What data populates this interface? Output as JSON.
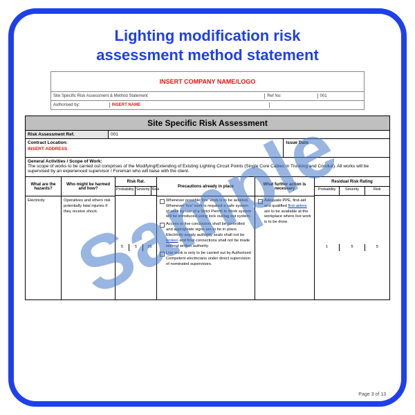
{
  "title_line1": "Lighting modification risk",
  "title_line2": "assessment method statement",
  "watermark": "Sample",
  "footer": "Page 3 of 13",
  "colors": {
    "frame_border": "#1e40eb",
    "title_color": "#1e40eb",
    "watermark_color": "rgba(70,120,200,0.55)",
    "insert_red": "#e11",
    "header_gray": "#bfbfbf",
    "link_blue": "#0033aa"
  },
  "header": {
    "company_logo": "INSERT COMPANY NAME/LOGO",
    "subtitle_label": "Site Specific Risk Assessment & Method Statement",
    "ref_label": "Ref No:",
    "ref_value": "001",
    "auth_label": "Authorised by:",
    "auth_value": "INSERT NAME"
  },
  "assessment": {
    "banner": "Site Specific Risk Assessment",
    "ref_label": "Risk Assessment Ref.",
    "ref_value": "001",
    "contract_label": "Contract Location:",
    "contract_value": "INSERT ADDRESS",
    "issue_label": "Issue Date",
    "scope_label": "General Activities / Scope of Work:",
    "scope_text": "The scope of works to be carried out comprises of the Modifying/Extending of Existing Lighting Circuit Points (Single Core Cables in Trunking and Conduit). All works will be supervised by an experienced supervisor / Foreman who will liaise with the client."
  },
  "table": {
    "headers": {
      "hazards": "What are the hazards?",
      "who": "Who might be harmed and how?",
      "risk_rat": "Risk Rat.",
      "risk_sub": {
        "prob": "Probability",
        "sev": "Severity",
        "risk": "Risk"
      },
      "precautions": "Precautions already in place",
      "further": "What further action is necessary",
      "residual": "Residual Risk Rating",
      "residual_sub": {
        "prob": "Probability",
        "sev": "Severity",
        "risk": "Risk"
      }
    },
    "row1": {
      "hazard": "Electricity",
      "who": "Operatives and others risk potentially fatal injuries if they receive shock.",
      "risk": {
        "prob": "5",
        "sev": "5",
        "r": "25"
      },
      "precautions": [
        "Whenever possible 'live' work is to be avoided. Whenever 'live' work is required a safe system of work by use of a Strict Permit to Work system will be introduced using lock out/tag out system.",
        "Access to live conductors shall be controlled and appropriate signs are to be in place. Electricity supply authority seals shall not be broken and final connections shall not be made without written authority.",
        "Live work is only to be carried out by Authorised Competent electricians under direct supervision of nominated supervisors."
      ],
      "precaution_links": [
        "broken"
      ],
      "further": "Adequate PPE, first-aid and qualified first-aiders are to be available at the workplace where live work is to be done.",
      "further_links": [
        "first-aiders"
      ],
      "residual": {
        "prob": "1",
        "sev": "5",
        "r": "5"
      }
    }
  }
}
